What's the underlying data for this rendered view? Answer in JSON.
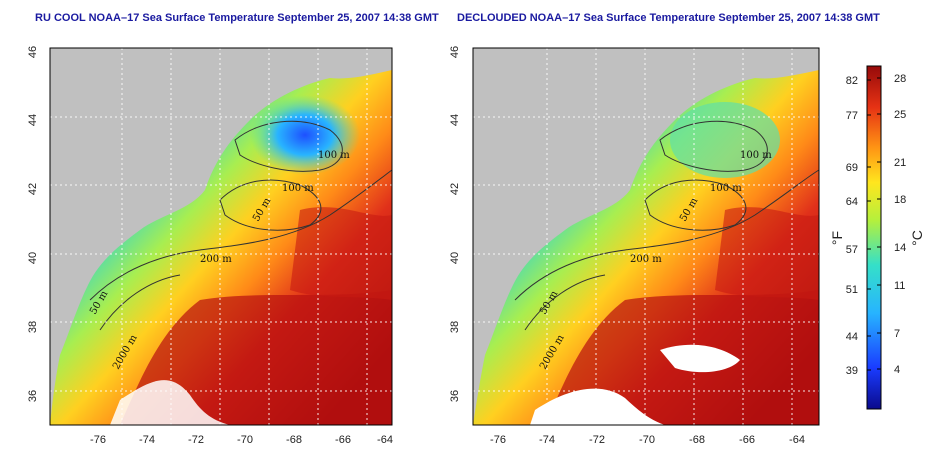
{
  "panels": [
    {
      "title": "RU COOL NOAA–17 Sea Surface Temperature September 25, 2007 14:38 GMT",
      "contour_labels": [
        "100 m",
        "100 m",
        "50 m",
        "200 m",
        "50 m",
        "2000 m"
      ]
    },
    {
      "title": "DECLOUDED NOAA–17 Sea Surface Temperature September 25, 2007 14:38 GMT",
      "contour_labels": [
        "100 m",
        "100 m",
        "50 m",
        "200 m",
        "50 m",
        "2000 m"
      ]
    }
  ],
  "axes": {
    "lon_ticks": [
      "-76",
      "-74",
      "-72",
      "-70",
      "-68",
      "-66",
      "-64"
    ],
    "lat_ticks": [
      "36",
      "38",
      "40",
      "42",
      "44",
      "46"
    ]
  },
  "colorbar": {
    "fahrenheit_ticks": [
      "82",
      "77",
      "69",
      "64",
      "57",
      "51",
      "44",
      "39"
    ],
    "celsius_ticks": [
      "28",
      "25",
      "21",
      "18",
      "14",
      "11",
      "7",
      "4"
    ],
    "unit_left": "°F",
    "unit_right": "°C"
  },
  "colors": {
    "land": "#c0c0c0",
    "cloud": "#ffffff",
    "warm": "#c81010",
    "cold": "#1028c8",
    "title": "#1a1aa0"
  }
}
